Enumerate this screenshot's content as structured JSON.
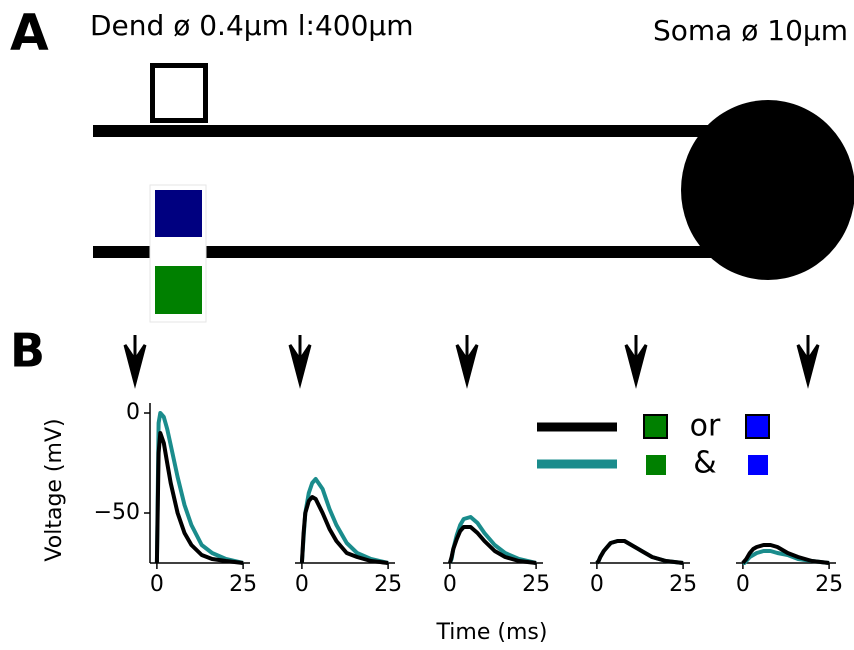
{
  "panel_labels": [
    "A",
    "B"
  ],
  "diagram": {
    "dendrite_label": "Dend ø 0.4µm l:400µm",
    "soma_label": "Soma ø 10µm"
  },
  "chart_data": [
    {
      "type": "line",
      "ylabel": "Voltage (mV)",
      "x": [
        0,
        0.5,
        1,
        2,
        3,
        4,
        6,
        8,
        10,
        13,
        16,
        20,
        25
      ],
      "xlim": [
        -2,
        27
      ],
      "ylim": [
        -75,
        5
      ],
      "xticks": [
        0,
        25
      ],
      "yticks": [
        0,
        {
          "value": -50,
          "label": "−50"
        }
      ],
      "series": [
        {
          "name": "&",
          "color": "#1a8c8c",
          "values": [
            -75,
            -5,
            0,
            -2,
            -8,
            -16,
            -32,
            -46,
            -56,
            -66,
            -70,
            -73,
            -75
          ]
        },
        {
          "name": "or",
          "color": "#000000",
          "values": [
            -75,
            -20,
            -10,
            -15,
            -25,
            -35,
            -50,
            -60,
            -66,
            -71,
            -73,
            -74,
            -75
          ]
        }
      ]
    },
    {
      "type": "line",
      "x": [
        0,
        0.5,
        1,
        2,
        3,
        4,
        6,
        8,
        10,
        13,
        16,
        20,
        25
      ],
      "xlim": [
        -2,
        27
      ],
      "ylim": [
        -75,
        5
      ],
      "xticks": [
        0,
        25
      ],
      "series": [
        {
          "color": "#1a8c8c",
          "values": [
            -75,
            -62,
            -50,
            -40,
            -35,
            -33,
            -38,
            -48,
            -56,
            -65,
            -70,
            -73,
            -75
          ]
        },
        {
          "color": "#000000",
          "values": [
            -75,
            -60,
            -50,
            -44,
            -42,
            -43,
            -50,
            -58,
            -64,
            -70,
            -72,
            -74,
            -75
          ]
        }
      ]
    },
    {
      "type": "line",
      "xlabel": "Time (ms)",
      "x": [
        0,
        0.5,
        1,
        2,
        3,
        4,
        6,
        8,
        10,
        13,
        16,
        20,
        25
      ],
      "xlim": [
        -2,
        27
      ],
      "ylim": [
        -75,
        5
      ],
      "xticks": [
        0,
        25
      ],
      "series": [
        {
          "color": "#1a8c8c",
          "values": [
            -75,
            -73,
            -68,
            -61,
            -56,
            -53,
            -52,
            -55,
            -60,
            -66,
            -70,
            -73,
            -75
          ]
        },
        {
          "color": "#000000",
          "values": [
            -75,
            -72,
            -68,
            -63,
            -59,
            -57,
            -57,
            -60,
            -64,
            -69,
            -72,
            -74,
            -75
          ]
        }
      ]
    },
    {
      "type": "line",
      "x": [
        0,
        0.5,
        1,
        2,
        3,
        4,
        6,
        8,
        10,
        13,
        16,
        20,
        25
      ],
      "xlim": [
        -2,
        27
      ],
      "ylim": [
        -75,
        5
      ],
      "xticks": [
        0,
        25
      ],
      "series": [
        {
          "color": "#1a8c8c",
          "values": [
            -75,
            -74,
            -72,
            -69,
            -67,
            -65,
            -64,
            -64,
            -66,
            -69,
            -72,
            -74,
            -75
          ]
        },
        {
          "color": "#000000",
          "values": [
            -75,
            -74,
            -72,
            -69,
            -67,
            -65,
            -64,
            -64,
            -66,
            -69,
            -72,
            -74,
            -75
          ]
        }
      ]
    },
    {
      "type": "line",
      "x": [
        0,
        0.5,
        1,
        2,
        3,
        4,
        6,
        8,
        10,
        13,
        16,
        20,
        25
      ],
      "xlim": [
        -2,
        27
      ],
      "ylim": [
        -75,
        5
      ],
      "xticks": [
        0,
        25
      ],
      "series": [
        {
          "color": "#1a8c8c",
          "values": [
            -75,
            -75,
            -74,
            -72,
            -71,
            -70,
            -69,
            -69,
            -70,
            -71,
            -73,
            -74,
            -75
          ]
        },
        {
          "color": "#000000",
          "values": [
            -75,
            -74,
            -73,
            -70,
            -68,
            -67,
            -66,
            -66,
            -67,
            -70,
            -72,
            -74,
            -75
          ]
        }
      ]
    }
  ]
}
